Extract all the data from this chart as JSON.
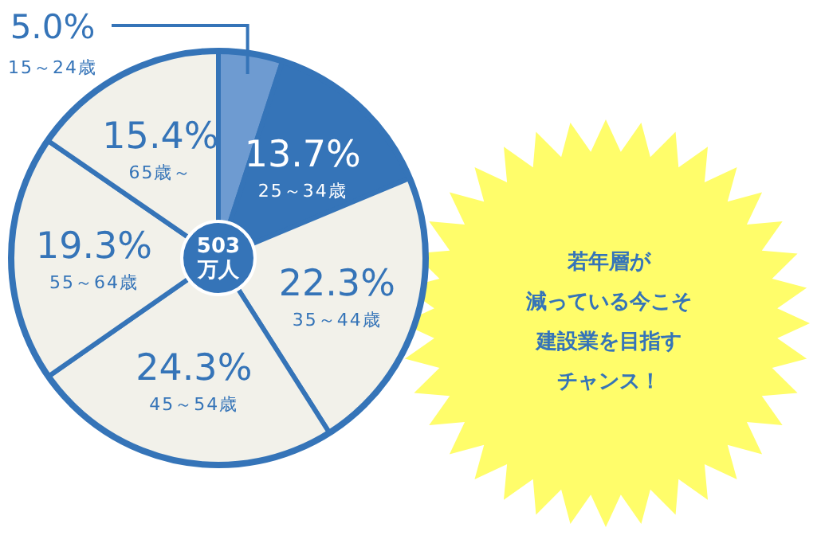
{
  "chart_data": {
    "type": "pie",
    "categories": [
      "15～24歳",
      "25～34歳",
      "35～44歳",
      "45～54歳",
      "55～64歳",
      "65歳～"
    ],
    "values": [
      5.0,
      13.7,
      22.3,
      24.3,
      19.3,
      15.4
    ],
    "value_labels": [
      "5.0%",
      "13.7%",
      "22.3%",
      "24.3%",
      "19.3%",
      "15.4%"
    ],
    "colors": [
      "#6e9bd1",
      "#3574b8",
      "#f2f1ea",
      "#f2f1ea",
      "#f2f1ea",
      "#f2f1ea"
    ],
    "annotations": [
      "503",
      "万人",
      "若年層が",
      "減っている今こそ",
      "建設業を目指す",
      "チャンス！"
    ]
  }
}
